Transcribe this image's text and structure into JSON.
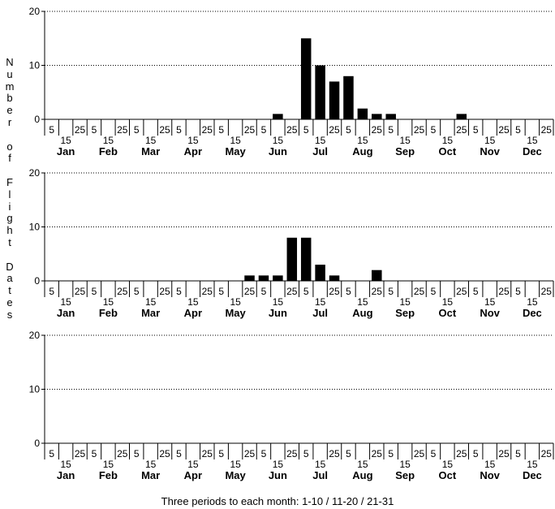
{
  "chart_data": [
    {
      "type": "bar",
      "xlabel": "Three periods to each month: 1-10 / 11-20 / 21-31",
      "ylabel": "Number of Flight Dates",
      "ylim": [
        0,
        20
      ],
      "yticks": [
        0,
        10,
        20
      ],
      "months": [
        "Jan",
        "Feb",
        "Mar",
        "Apr",
        "May",
        "Jun",
        "Jul",
        "Aug",
        "Sep",
        "Oct",
        "Nov",
        "Dec"
      ],
      "period_labels": [
        "5",
        "15",
        "25"
      ],
      "grid": "horizontal dotted at 10 and 20",
      "values": [
        0,
        0,
        0,
        0,
        0,
        0,
        0,
        0,
        0,
        0,
        0,
        0,
        0,
        0,
        0,
        0,
        1,
        0,
        15,
        10,
        7,
        8,
        2,
        1,
        1,
        0,
        0,
        0,
        0,
        1,
        0,
        0,
        0,
        0,
        0,
        0
      ]
    },
    {
      "type": "bar",
      "xlabel": "Three periods to each month: 1-10 / 11-20 / 21-31",
      "ylabel": "Number of Flight Dates",
      "ylim": [
        0,
        20
      ],
      "yticks": [
        0,
        10,
        20
      ],
      "months": [
        "Jan",
        "Feb",
        "Mar",
        "Apr",
        "May",
        "Jun",
        "Jul",
        "Aug",
        "Sep",
        "Oct",
        "Nov",
        "Dec"
      ],
      "period_labels": [
        "5",
        "15",
        "25"
      ],
      "grid": "horizontal dotted at 10 and 20",
      "values": [
        0,
        0,
        0,
        0,
        0,
        0,
        0,
        0,
        0,
        0,
        0,
        0,
        0,
        0,
        1,
        1,
        1,
        8,
        8,
        3,
        1,
        0,
        0,
        2,
        0,
        0,
        0,
        0,
        0,
        0,
        0,
        0,
        0,
        0,
        0,
        0
      ]
    },
    {
      "type": "bar",
      "xlabel": "Three periods to each month: 1-10 / 11-20 / 21-31",
      "ylabel": "Number of Flight Dates",
      "ylim": [
        0,
        20
      ],
      "yticks": [
        0,
        10,
        20
      ],
      "months": [
        "Jan",
        "Feb",
        "Mar",
        "Apr",
        "May",
        "Jun",
        "Jul",
        "Aug",
        "Sep",
        "Oct",
        "Nov",
        "Dec"
      ],
      "period_labels": [
        "5",
        "15",
        "25"
      ],
      "grid": "horizontal dotted at 10 and 20",
      "values": [
        0,
        0,
        0,
        0,
        0,
        0,
        0,
        0,
        0,
        0,
        0,
        0,
        0,
        0,
        0,
        0,
        0,
        0,
        0,
        0,
        0,
        0,
        0,
        0,
        0,
        0,
        0,
        0,
        0,
        0,
        0,
        0,
        0,
        0,
        0,
        0
      ]
    }
  ],
  "shared": {
    "ylabel_letters": [
      "N",
      "u",
      "m",
      "b",
      "e",
      "r",
      "",
      "o",
      "f",
      "",
      "F",
      "l",
      "i",
      "g",
      "h",
      "t",
      "",
      "D",
      "a",
      "t",
      "e",
      "s"
    ],
    "caption": "Three periods to each month: 1-10 / 11-20 / 21-31"
  }
}
